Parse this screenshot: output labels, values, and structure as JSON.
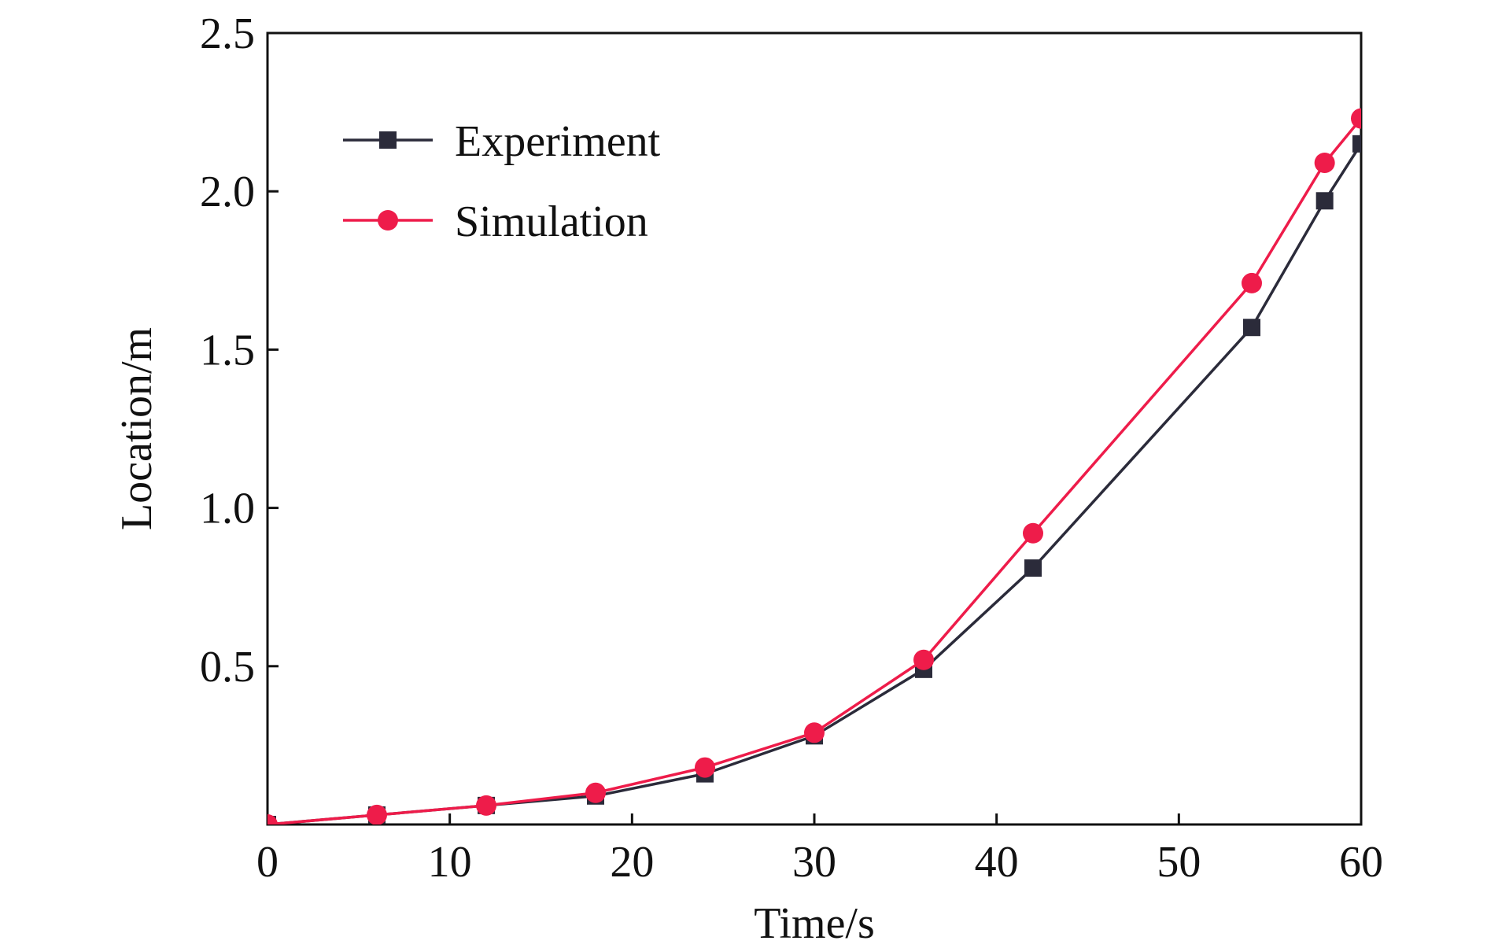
{
  "chart_data": {
    "type": "line",
    "title": "",
    "xlabel": "Time/s",
    "ylabel": "Location/m",
    "xlim": [
      0,
      60
    ],
    "ylim": [
      0,
      2.5
    ],
    "xticks": [
      0,
      10,
      20,
      30,
      40,
      50,
      60
    ],
    "xtick_labels": [
      "0",
      "10",
      "20",
      "30",
      "40",
      "50",
      "60"
    ],
    "yticks": [
      0.5,
      1.0,
      1.5,
      2.0,
      2.5
    ],
    "ytick_labels": [
      "0.5",
      "1.0",
      "1.5",
      "2.0",
      "2.5"
    ],
    "grid": false,
    "legend_position": "top-left",
    "series": [
      {
        "name": "Experiment",
        "marker": "square",
        "color": "#2b2b3a",
        "x": [
          0,
          6,
          12,
          18,
          24,
          30,
          36,
          42,
          54,
          58,
          60
        ],
        "y": [
          0.0,
          0.03,
          0.06,
          0.09,
          0.16,
          0.28,
          0.49,
          0.81,
          1.57,
          1.97,
          2.15
        ]
      },
      {
        "name": "Simulation",
        "marker": "circle",
        "color": "#ee1c4a",
        "x": [
          0,
          6,
          12,
          18,
          24,
          30,
          36,
          42,
          54,
          58,
          60
        ],
        "y": [
          0.0,
          0.03,
          0.06,
          0.1,
          0.18,
          0.29,
          0.52,
          0.92,
          1.71,
          2.09,
          2.23
        ]
      }
    ]
  }
}
